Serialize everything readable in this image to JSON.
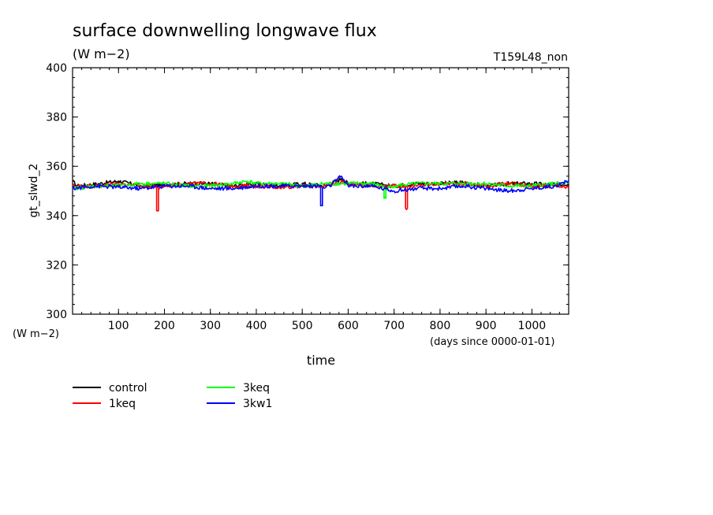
{
  "chart_data": {
    "type": "line",
    "title": "surface downwelling longwave flux",
    "units": "(W m−2)",
    "run_id": "T159L48_non",
    "ylabel": "gt_slwd_2",
    "y_units": "(W m−2)",
    "xlabel": "time",
    "x_units": "(days since 0000-01-01)",
    "xlim": [
      0,
      1080
    ],
    "ylim": [
      300,
      400
    ],
    "x_ticks": [
      100,
      200,
      300,
      400,
      500,
      600,
      700,
      800,
      900,
      1000
    ],
    "y_ticks": [
      300,
      320,
      340,
      360,
      380,
      400
    ],
    "legend_placement": "bottom-left",
    "series": [
      {
        "name": "control",
        "color": "#000000",
        "mean": 352.8,
        "points": [
          [
            0,
            354
          ],
          [
            10,
            352
          ],
          [
            60,
            353
          ],
          [
            100,
            354
          ],
          [
            150,
            352
          ],
          [
            200,
            352.5
          ],
          [
            250,
            353
          ],
          [
            300,
            353
          ],
          [
            350,
            352
          ],
          [
            400,
            353
          ],
          [
            450,
            352
          ],
          [
            500,
            353
          ],
          [
            550,
            352
          ],
          [
            585,
            355
          ],
          [
            600,
            353
          ],
          [
            650,
            353
          ],
          [
            700,
            352
          ],
          [
            750,
            353
          ],
          [
            800,
            353
          ],
          [
            850,
            353.5
          ],
          [
            900,
            352
          ],
          [
            950,
            353
          ],
          [
            1000,
            353
          ],
          [
            1050,
            352.5
          ],
          [
            1080,
            353
          ]
        ]
      },
      {
        "name": "1keq",
        "color": "#ff0000",
        "mean": 352.3,
        "points": [
          [
            0,
            352
          ],
          [
            50,
            352
          ],
          [
            100,
            353
          ],
          [
            150,
            352
          ],
          [
            183,
            352
          ],
          [
            183,
            342
          ],
          [
            187,
            342
          ],
          [
            187,
            351
          ],
          [
            200,
            352
          ],
          [
            250,
            353
          ],
          [
            300,
            353
          ],
          [
            350,
            352
          ],
          [
            400,
            352
          ],
          [
            450,
            351.5
          ],
          [
            500,
            352
          ],
          [
            550,
            352
          ],
          [
            590,
            354
          ],
          [
            600,
            353
          ],
          [
            650,
            352
          ],
          [
            700,
            352
          ],
          [
            725,
            352
          ],
          [
            725,
            343
          ],
          [
            729,
            343
          ],
          [
            729,
            352
          ],
          [
            750,
            352
          ],
          [
            800,
            353
          ],
          [
            850,
            353
          ],
          [
            900,
            352
          ],
          [
            950,
            353
          ],
          [
            1000,
            352
          ],
          [
            1050,
            352
          ],
          [
            1080,
            351
          ]
        ]
      },
      {
        "name": "3keq",
        "color": "#00ff00",
        "mean": 352.6,
        "points": [
          [
            0,
            351
          ],
          [
            50,
            352
          ],
          [
            100,
            352
          ],
          [
            150,
            353
          ],
          [
            200,
            353
          ],
          [
            250,
            352
          ],
          [
            300,
            352
          ],
          [
            350,
            353
          ],
          [
            380,
            354
          ],
          [
            400,
            353
          ],
          [
            450,
            353
          ],
          [
            500,
            352
          ],
          [
            550,
            353
          ],
          [
            600,
            353
          ],
          [
            650,
            353
          ],
          [
            678,
            352
          ],
          [
            678,
            347
          ],
          [
            682,
            347
          ],
          [
            682,
            351
          ],
          [
            700,
            352
          ],
          [
            750,
            353
          ],
          [
            800,
            353
          ],
          [
            850,
            353
          ],
          [
            900,
            353
          ],
          [
            950,
            352
          ],
          [
            1000,
            352
          ],
          [
            1050,
            353
          ],
          [
            1080,
            353
          ]
        ]
      },
      {
        "name": "3kw1",
        "color": "#0000ff",
        "mean": 351.8,
        "points": [
          [
            0,
            351
          ],
          [
            50,
            352
          ],
          [
            100,
            351.5
          ],
          [
            150,
            351
          ],
          [
            200,
            352
          ],
          [
            250,
            352
          ],
          [
            300,
            351
          ],
          [
            350,
            351
          ],
          [
            400,
            352
          ],
          [
            450,
            352
          ],
          [
            500,
            352
          ],
          [
            540,
            352
          ],
          [
            540,
            344
          ],
          [
            544,
            344
          ],
          [
            544,
            351
          ],
          [
            560,
            352
          ],
          [
            585,
            356
          ],
          [
            600,
            352
          ],
          [
            650,
            352
          ],
          [
            700,
            350
          ],
          [
            750,
            351
          ],
          [
            800,
            351
          ],
          [
            850,
            352
          ],
          [
            900,
            351
          ],
          [
            950,
            350
          ],
          [
            1000,
            351
          ],
          [
            1050,
            352
          ],
          [
            1080,
            354
          ]
        ]
      }
    ]
  }
}
